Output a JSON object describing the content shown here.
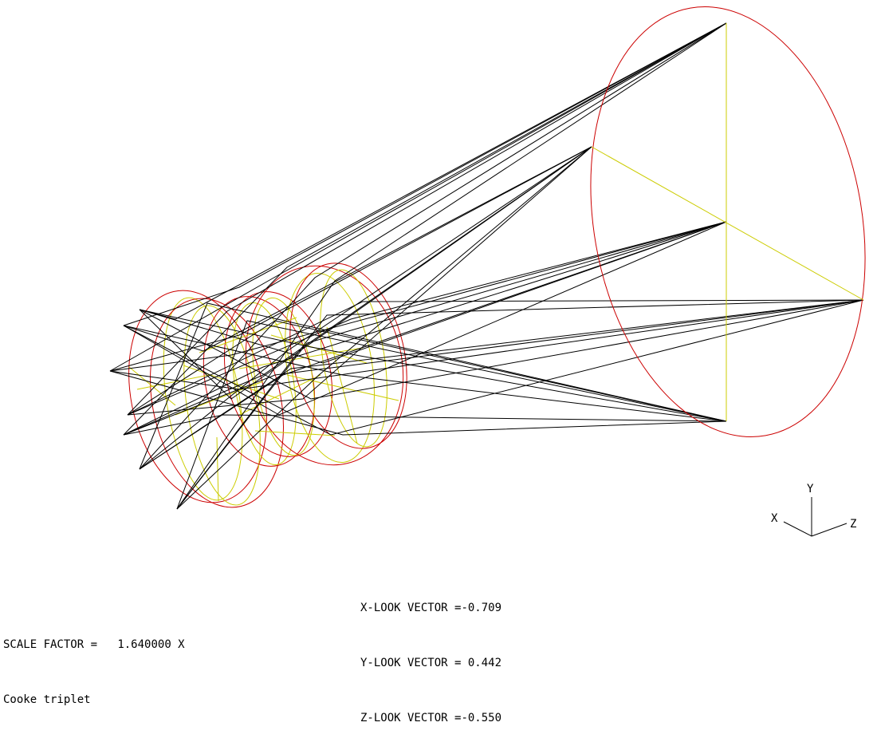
{
  "footer": {
    "scale_factor_label": "SCALE FACTOR =",
    "scale_factor_value": "1.640000 X",
    "lens_name": "Cooke triplet"
  },
  "look_vectors": [
    {
      "label": "X-LOOK VECTOR =",
      "value": "-0.709"
    },
    {
      "label": "Y-LOOK VECTOR =",
      "value": " 0.442"
    },
    {
      "label": "Z-LOOK VECTOR =",
      "value": "-0.550"
    }
  ],
  "axis_triad": {
    "x_label": "X",
    "y_label": "Y",
    "z_label": "Z"
  },
  "colors": {
    "surface_outline": "#cc0000",
    "surface_section": "#cccc00",
    "rays": "#000000",
    "text": "#000000",
    "background": "#ffffff"
  }
}
